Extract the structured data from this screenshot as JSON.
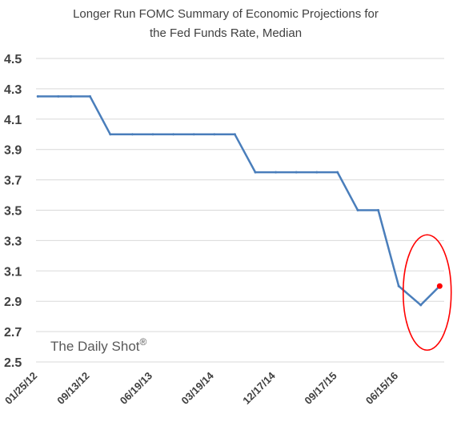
{
  "chart_data": {
    "type": "line",
    "title_lines": [
      "Longer Run FOMC Summary of Economic Projections for",
      "the Fed Funds Rate, Median"
    ],
    "xlabel": "",
    "ylabel": "",
    "ylim": [
      2.5,
      4.5
    ],
    "yticks": [
      "4.5",
      "4.3",
      "4.1",
      "3.9",
      "3.7",
      "3.5",
      "3.3",
      "3.1",
      "2.9",
      "2.7",
      "2.5"
    ],
    "xticks": [
      "01/25/12",
      "09/13/12",
      "06/19/13",
      "03/19/14",
      "12/17/14",
      "09/17/15",
      "06/15/16"
    ],
    "grid": true,
    "series": [
      {
        "color": "#4a7ebb",
        "x": [
          "01/25/12",
          "04/25/12",
          "06/20/12",
          "09/13/12",
          "12/12/12",
          "03/20/13",
          "06/19/13",
          "09/18/13",
          "12/18/13",
          "03/19/14",
          "06/18/14",
          "09/17/14",
          "12/17/14",
          "03/18/15",
          "06/17/15",
          "09/17/15",
          "12/16/15",
          "03/16/16",
          "06/15/16",
          "09/21/16",
          "12/14/16"
        ],
        "values": [
          4.25,
          4.25,
          4.25,
          4.25,
          4.0,
          4.0,
          4.0,
          4.0,
          4.0,
          4.0,
          4.0,
          3.75,
          3.75,
          3.75,
          3.75,
          3.75,
          3.5,
          3.5,
          3.0,
          2.875,
          3.0
        ]
      }
    ],
    "highlight_point": {
      "x": "12/14/16",
      "value": 3.0,
      "color": "#ff0000"
    },
    "annotation_ellipse_color": "#ff0000",
    "watermark": "The Daily Shot",
    "watermark_symbol": "®"
  }
}
